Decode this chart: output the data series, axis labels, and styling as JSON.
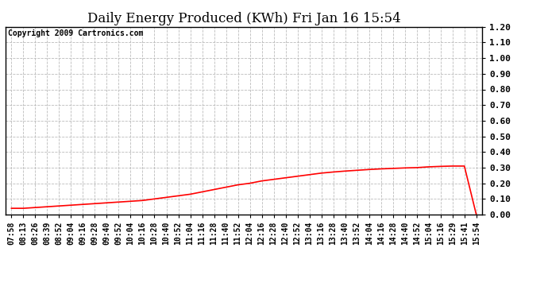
{
  "title": "Daily Energy Produced (KWh) Fri Jan 16 15:54",
  "copyright_text": "Copyright 2009 Cartronics.com",
  "line_color": "#ff0000",
  "background_color": "#ffffff",
  "grid_color": "#bbbbbb",
  "ylim": [
    0.0,
    1.2
  ],
  "yticks": [
    0.0,
    0.1,
    0.2,
    0.3,
    0.4,
    0.5,
    0.6,
    0.7,
    0.8,
    0.9,
    1.0,
    1.1,
    1.2
  ],
  "x_labels": [
    "07:58",
    "08:13",
    "08:26",
    "08:39",
    "08:52",
    "09:04",
    "09:16",
    "09:28",
    "09:40",
    "09:52",
    "10:04",
    "10:16",
    "10:28",
    "10:40",
    "10:52",
    "11:04",
    "11:16",
    "11:28",
    "11:40",
    "11:52",
    "12:04",
    "12:16",
    "12:28",
    "12:40",
    "12:52",
    "13:04",
    "13:16",
    "13:28",
    "13:40",
    "13:52",
    "14:04",
    "14:16",
    "14:28",
    "14:40",
    "14:52",
    "15:04",
    "15:16",
    "15:29",
    "15:41",
    "15:54"
  ],
  "y_values": [
    0.04,
    0.04,
    0.045,
    0.05,
    0.055,
    0.06,
    0.065,
    0.07,
    0.075,
    0.08,
    0.085,
    0.09,
    0.1,
    0.11,
    0.12,
    0.13,
    0.145,
    0.16,
    0.175,
    0.19,
    0.2,
    0.215,
    0.225,
    0.235,
    0.245,
    0.255,
    0.265,
    0.272,
    0.278,
    0.283,
    0.288,
    0.292,
    0.295,
    0.298,
    0.3,
    0.305,
    0.308,
    0.31,
    0.31,
    0.0
  ],
  "title_fontsize": 12,
  "copyright_fontsize": 7,
  "tick_fontsize": 7,
  "ytick_fontsize": 8,
  "line_width": 1.2
}
